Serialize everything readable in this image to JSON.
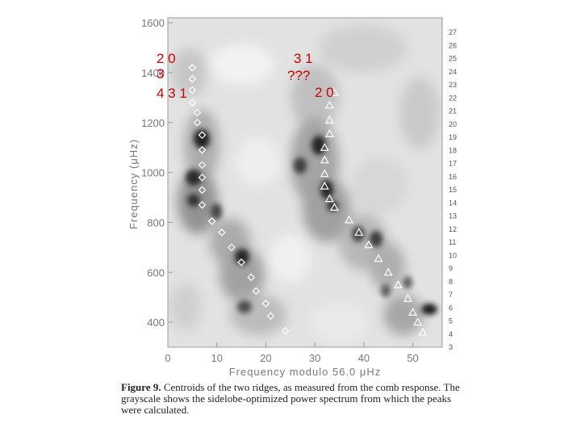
{
  "chart_data": {
    "type": "heatmap",
    "xlabel": "Frequency modulo 56.0 μHz",
    "ylabel": "Frequency (μHz)",
    "xlim": [
      0,
      56
    ],
    "ylim": [
      300,
      1620
    ],
    "x_ticks": [
      "0",
      "10",
      "20",
      "30",
      "40",
      "50"
    ],
    "y_ticks": [
      "400",
      "600",
      "800",
      "1000",
      "1200",
      "1400",
      "1600"
    ],
    "right_ticks": [
      "3",
      "4",
      "5",
      "6",
      "7",
      "8",
      "9",
      "10",
      "11",
      "12",
      "13",
      "14",
      "15",
      "16",
      "17",
      "18",
      "19",
      "20",
      "21",
      "22",
      "23",
      "24",
      "25",
      "26",
      "27"
    ],
    "series": [
      {
        "marker": "diamond",
        "points": [
          [
            5,
            1420
          ],
          [
            5,
            1375
          ],
          [
            5,
            1330
          ],
          [
            5,
            1280
          ],
          [
            6,
            1240
          ],
          [
            6,
            1200
          ],
          [
            7,
            1150
          ],
          [
            7,
            1090
          ],
          [
            7,
            1030
          ],
          [
            7,
            980
          ],
          [
            7,
            930
          ],
          [
            7,
            870
          ],
          [
            9,
            805
          ],
          [
            11,
            760
          ],
          [
            13,
            700
          ],
          [
            15,
            640
          ],
          [
            17,
            580
          ],
          [
            18,
            525
          ],
          [
            20,
            475
          ],
          [
            21,
            425
          ],
          [
            24,
            365
          ]
        ]
      },
      {
        "marker": "triangle",
        "points": [
          [
            34,
            1320
          ],
          [
            33,
            1270
          ],
          [
            33,
            1210
          ],
          [
            33,
            1155
          ],
          [
            32,
            1100
          ],
          [
            32,
            1050
          ],
          [
            32,
            995
          ],
          [
            32,
            945
          ],
          [
            33,
            895
          ],
          [
            34,
            860
          ],
          [
            37,
            810
          ],
          [
            39,
            760
          ],
          [
            41,
            710
          ],
          [
            43,
            655
          ],
          [
            45,
            600
          ],
          [
            47,
            550
          ],
          [
            49,
            495
          ],
          [
            50,
            440
          ],
          [
            51,
            400
          ],
          [
            52,
            360
          ]
        ]
      }
    ]
  },
  "annotations": {
    "a1": "2  0",
    "a2": "3",
    "a3": "4  3  1",
    "a4": "3  1",
    "a5": "???",
    "a6": "2  0"
  },
  "caption": {
    "figure_label": "Figure 9.",
    "text": "Centroids of the two ridges, as measured from the comb response. The grayscale shows the sidelobe-optimized power spectrum from which the peaks were calculated."
  }
}
